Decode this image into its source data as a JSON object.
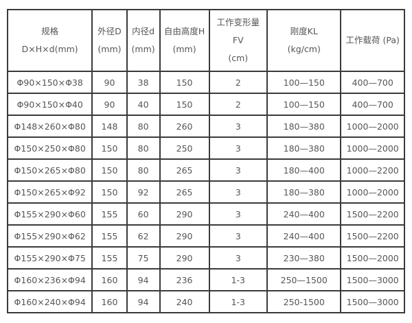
{
  "table": {
    "headers": [
      [
        "规格",
        "D×H×d(mm)"
      ],
      [
        "外径D",
        "(mm)"
      ],
      [
        "内径d",
        "(mm)"
      ],
      [
        "自由高度H",
        "(mm)"
      ],
      [
        "工作变形量",
        "FV",
        "(cm)"
      ],
      [
        "刚度KL",
        "(kg/cm)"
      ],
      [
        "工作载荷 (Pa)"
      ]
    ],
    "rows": [
      [
        "Φ90×150×Φ38",
        "90",
        "38",
        "150",
        "2",
        "100—150",
        "400—700"
      ],
      [
        "Φ90×150×Φ40",
        "90",
        "40",
        "150",
        "2",
        "100—150",
        "400—700"
      ],
      [
        "Φ148×260×Φ80",
        "148",
        "80",
        "260",
        "3",
        "180—380",
        "1000—2000"
      ],
      [
        "Φ150×250×Φ80",
        "150",
        "80",
        "250",
        "3",
        "180—380",
        "1000—2000"
      ],
      [
        "Φ150×265×Φ80",
        "150",
        "80",
        "265",
        "3",
        "180—400",
        "1000—2200"
      ],
      [
        "Φ150×265×Φ92",
        "150",
        "92",
        "265",
        "3",
        "180—380",
        "1000—2000"
      ],
      [
        "Φ155×290×Φ60",
        "155",
        "60",
        "290",
        "3",
        "240—400",
        "1500—2200"
      ],
      [
        "Φ155×290×Φ62",
        "155",
        "62",
        "290",
        "3",
        "240—400",
        "1500—2200"
      ],
      [
        "Φ155×290×Φ75",
        "155",
        "75",
        "290",
        "3",
        "230—380",
        "1500—2000"
      ],
      [
        "Φ160×236×Φ94",
        "160",
        "94",
        "236",
        "1-3",
        "250—1500",
        "1500—3000"
      ],
      [
        "Φ160×240×Φ94",
        "160",
        "94",
        "240",
        "1-3",
        "250-1500",
        "1500—3000"
      ]
    ]
  }
}
